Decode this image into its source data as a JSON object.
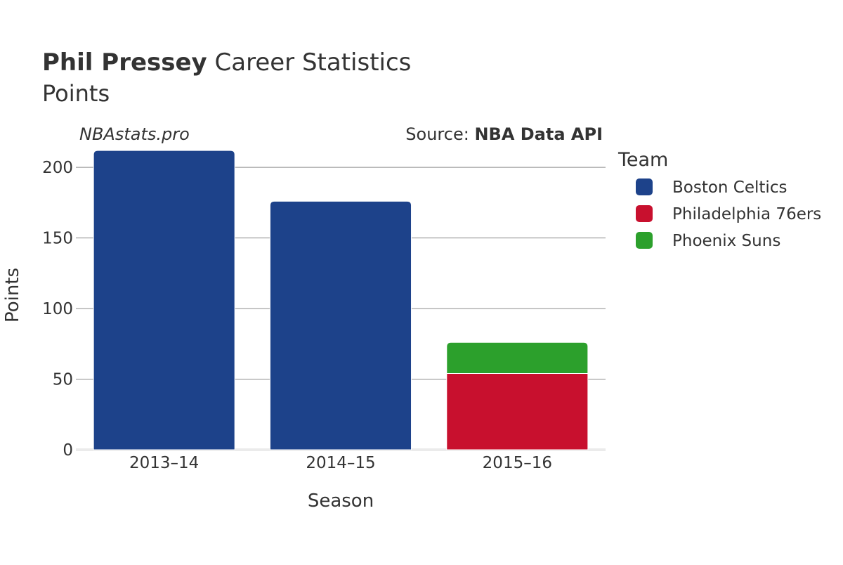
{
  "chart_data": {
    "type": "bar",
    "stacked": true,
    "title_bold": "Phil Pressey",
    "title_rest": "Career Statistics",
    "subtitle": "Points",
    "watermark": "NBAstats.pro",
    "source_prefix": "Source: ",
    "source_name": "NBA Data API",
    "xlabel": "Season",
    "ylabel": "Points",
    "ylim": [
      0,
      220
    ],
    "yticks": [
      0,
      50,
      100,
      150,
      200
    ],
    "grid": true,
    "legend_title": "Team",
    "legend_position": "right",
    "categories": [
      "2013–14",
      "2014–15",
      "2015–16"
    ],
    "series": [
      {
        "name": "Boston Celtics",
        "color": "#1d428a",
        "values": [
          212,
          176,
          0
        ]
      },
      {
        "name": "Philadelphia 76ers",
        "color": "#c8102e",
        "values": [
          0,
          0,
          54
        ]
      },
      {
        "name": "Phoenix Suns",
        "color": "#2ca02c",
        "values": [
          0,
          0,
          22
        ]
      }
    ]
  }
}
